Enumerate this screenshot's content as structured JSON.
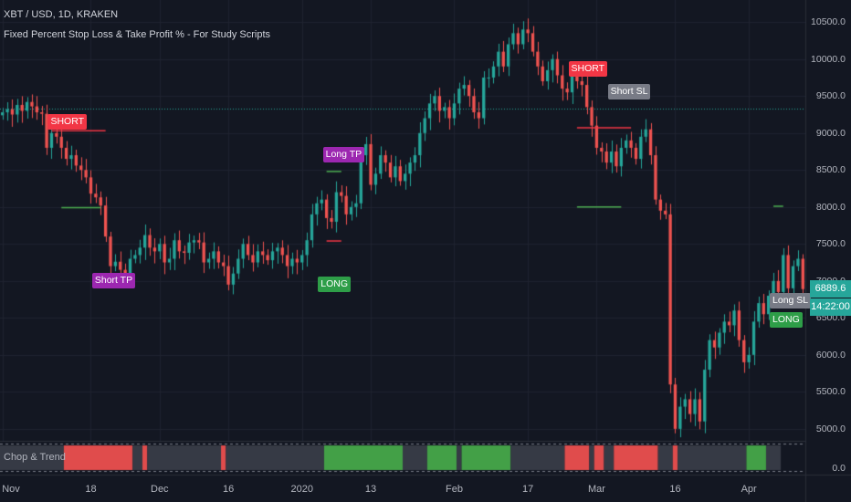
{
  "header": {
    "symbol_line": "XBT / USD, 1D, KRAKEN",
    "study_title": "Fixed Percent Stop Loss & Take Profit % - For Study Scripts"
  },
  "price_axis": {
    "labels": [
      "10500.0",
      "10000.0",
      "9500.0",
      "9000.0",
      "8500.0",
      "8000.0",
      "7500.0",
      "7000.0",
      "6500.0",
      "6000.0",
      "5500.0",
      "5000.0"
    ],
    "values": [
      10500,
      10000,
      9500,
      9000,
      8500,
      8000,
      7500,
      7000,
      6500,
      6000,
      5500,
      5000
    ],
    "range": [
      4850,
      10700
    ]
  },
  "time_axis": {
    "labels": [
      "Nov",
      "18",
      "Dec",
      "16",
      "2020",
      "13",
      "Feb",
      "17",
      "Mar",
      "16",
      "Apr"
    ],
    "index": [
      0,
      18,
      32,
      46,
      61,
      75,
      92,
      107,
      121,
      137,
      152
    ]
  },
  "current_price": "6889.6",
  "countdown": "14:22:00",
  "markers": [
    {
      "text": "SHORT",
      "style": "red",
      "bar": 10,
      "price": 9150
    },
    {
      "text": "Short TP",
      "style": "purple",
      "bar": 19,
      "price": 7000
    },
    {
      "text": "Long TP",
      "style": "purple",
      "bar": 66,
      "price": 8700
    },
    {
      "text": "LONG",
      "style": "green",
      "bar": 65,
      "price": 6950
    },
    {
      "text": "SHORT",
      "style": "red",
      "bar": 116,
      "price": 9860
    },
    {
      "text": "Short SL",
      "style": "gray",
      "bar": 124,
      "price": 9550
    },
    {
      "text": "Long SL",
      "style": "gray",
      "bar": 157,
      "price": 6730
    },
    {
      "text": "LONG",
      "style": "green",
      "bar": 157,
      "price": 6470
    }
  ],
  "levels": [
    {
      "color": "#f23645",
      "price": 9030,
      "from": 10,
      "to": 21
    },
    {
      "color": "#4caf50",
      "price": 7990,
      "from": 12,
      "to": 20
    },
    {
      "color": "#4caf50",
      "price": 8480,
      "from": 66,
      "to": 69
    },
    {
      "color": "#f23645",
      "price": 7540,
      "from": 66,
      "to": 69
    },
    {
      "color": "#f23645",
      "price": 9070,
      "from": 117,
      "to": 128
    },
    {
      "color": "#4caf50",
      "price": 8000,
      "from": 117,
      "to": 126
    },
    {
      "color": "#4caf50",
      "price": 8010,
      "from": 157,
      "to": 159
    }
  ],
  "chop_trend": {
    "label": "Chop & Trend",
    "axis_label": "0.0",
    "segments": [
      {
        "from": 0,
        "to": 13,
        "color": "#363a45"
      },
      {
        "from": 13,
        "to": 27,
        "color": "#e04c4c"
      },
      {
        "from": 27,
        "to": 29,
        "color": "#363a45"
      },
      {
        "from": 29,
        "to": 30,
        "color": "#e04c4c"
      },
      {
        "from": 30,
        "to": 45,
        "color": "#363a45"
      },
      {
        "from": 45,
        "to": 46,
        "color": "#e04c4c"
      },
      {
        "from": 46,
        "to": 66,
        "color": "#363a45"
      },
      {
        "from": 66,
        "to": 82,
        "color": "#43a047"
      },
      {
        "from": 82,
        "to": 87,
        "color": "#363a45"
      },
      {
        "from": 87,
        "to": 93,
        "color": "#43a047"
      },
      {
        "from": 93,
        "to": 94,
        "color": "#363a45"
      },
      {
        "from": 94,
        "to": 104,
        "color": "#43a047"
      },
      {
        "from": 104,
        "to": 115,
        "color": "#363a45"
      },
      {
        "from": 115,
        "to": 120,
        "color": "#e04c4c"
      },
      {
        "from": 120,
        "to": 121,
        "color": "#363a45"
      },
      {
        "from": 121,
        "to": 123,
        "color": "#e04c4c"
      },
      {
        "from": 123,
        "to": 125,
        "color": "#363a45"
      },
      {
        "from": 125,
        "to": 134,
        "color": "#e04c4c"
      },
      {
        "from": 134,
        "to": 137,
        "color": "#363a45"
      },
      {
        "from": 137,
        "to": 138,
        "color": "#e04c4c"
      },
      {
        "from": 138,
        "to": 152,
        "color": "#363a45"
      },
      {
        "from": 152,
        "to": 156,
        "color": "#43a047"
      },
      {
        "from": 156,
        "to": 159,
        "color": "#363a45"
      }
    ]
  },
  "chart_data": {
    "type": "candlestick",
    "ylim": [
      4850,
      10700
    ],
    "close": [
      9280,
      9320,
      9250,
      9380,
      9300,
      9420,
      9360,
      9280,
      9260,
      8800,
      9000,
      8950,
      8800,
      8650,
      8700,
      8560,
      8500,
      8400,
      8180,
      8130,
      8020,
      7600,
      7200,
      7260,
      7150,
      7050,
      7300,
      7350,
      7450,
      7620,
      7450,
      7400,
      7500,
      7250,
      7300,
      7550,
      7400,
      7380,
      7520,
      7550,
      7520,
      7250,
      7300,
      7400,
      7250,
      7200,
      6950,
      7100,
      7300,
      7500,
      7350,
      7250,
      7400,
      7350,
      7280,
      7400,
      7450,
      7350,
      7200,
      7300,
      7250,
      7350,
      7550,
      7900,
      8050,
      8100,
      7850,
      7800,
      8200,
      8150,
      7900,
      8000,
      8050,
      8700,
      8850,
      8300,
      8450,
      8700,
      8600,
      8400,
      8550,
      8350,
      8450,
      8600,
      8700,
      9000,
      9200,
      9400,
      9500,
      9300,
      9350,
      9200,
      9400,
      9600,
      9650,
      9500,
      9280,
      9200,
      9750,
      9750,
      9900,
      10100,
      9900,
      10200,
      10350,
      10200,
      10400,
      10350,
      10100,
      9900,
      9700,
      9850,
      10000,
      9780,
      9600,
      9550,
      9800,
      9700,
      9650,
      9350,
      9100,
      8800,
      8750,
      8600,
      8750,
      8550,
      8800,
      8900,
      8800,
      8650,
      8950,
      9050,
      8700,
      8100,
      7950,
      7900,
      5600,
      5000,
      5300,
      5400,
      5200,
      5400,
      5100,
      5800,
      6200,
      6100,
      6300,
      6450,
      6400,
      6600,
      6200,
      5900,
      6000,
      6450,
      6700,
      6550,
      6800,
      7000,
      6850,
      7350,
      6900,
      7200,
      7300,
      6889.6
    ]
  }
}
